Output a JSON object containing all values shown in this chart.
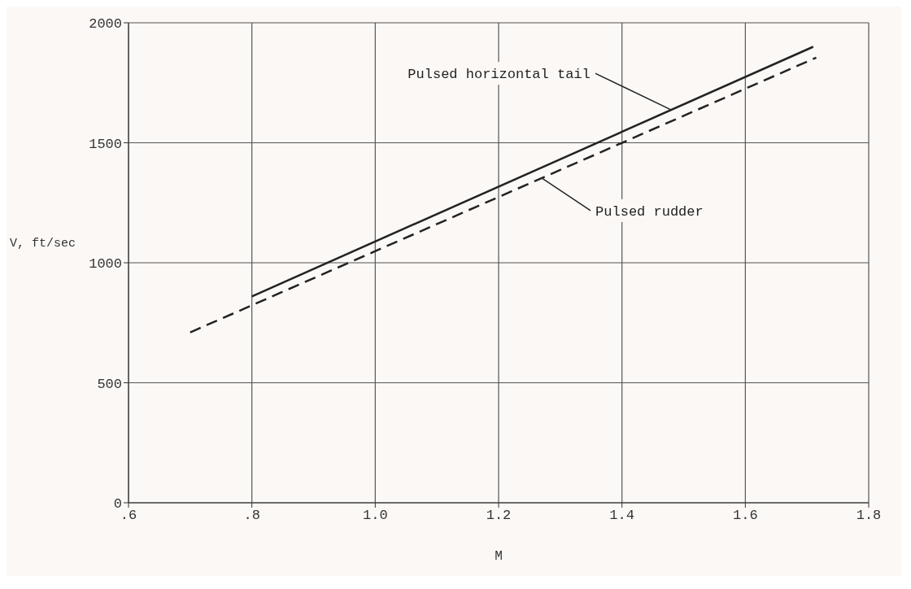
{
  "chart_data": {
    "type": "line",
    "xlabel": "M",
    "ylabel": "V, ft/sec",
    "xlim": [
      0.6,
      1.8
    ],
    "xticks": [
      {
        "value": 0.6,
        "label": ".6"
      },
      {
        "value": 0.8,
        "label": ".8"
      },
      {
        "value": 1.0,
        "label": "1.0"
      },
      {
        "value": 1.2,
        "label": "1.2"
      },
      {
        "value": 1.4,
        "label": "1.4"
      },
      {
        "value": 1.6,
        "label": "1.6"
      },
      {
        "value": 1.8,
        "label": "1.8"
      }
    ],
    "ylim": [
      0,
      2000
    ],
    "yticks": [
      0,
      500,
      1000,
      1500,
      2000
    ],
    "grid": true,
    "marker": "none",
    "series": [
      {
        "color": "#222222",
        "line_style": "solid",
        "x": [
          0.8,
          1.71
        ],
        "values": [
          860,
          1900
        ]
      },
      {
        "color": "#222222",
        "line_style": "dashed",
        "x": [
          0.7,
          1.715
        ],
        "values": [
          710,
          1855
        ]
      }
    ],
    "annotations": [
      {
        "text": "Pulsed horizontal tail",
        "x": 1.48,
        "y": 1637
      },
      {
        "text": "Pulsed rudder",
        "x": 1.27,
        "y": 1353
      }
    ]
  }
}
